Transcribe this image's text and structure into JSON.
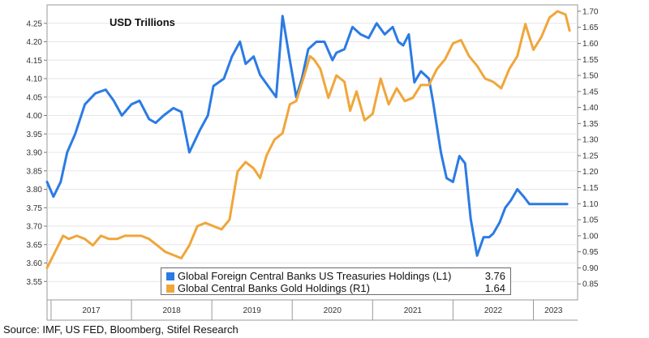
{
  "chart_data": {
    "type": "line",
    "title": "USD Trillions",
    "left_axis": {
      "ylim": [
        3.5,
        4.3
      ],
      "ticks": [
        "3.55",
        "3.60",
        "3.65",
        "3.70",
        "3.75",
        "3.80",
        "3.85",
        "3.90",
        "3.95",
        "4.00",
        "4.05",
        "4.10",
        "4.15",
        "4.20",
        "4.25"
      ]
    },
    "right_axis": {
      "ylim": [
        0.8,
        1.72
      ],
      "ticks": [
        "0.85",
        "0.90",
        "0.95",
        "1.00",
        "1.05",
        "1.10",
        "1.15",
        "1.20",
        "1.25",
        "1.30",
        "1.35",
        "1.40",
        "1.45",
        "1.50",
        "1.55",
        "1.60",
        "1.65",
        "1.70"
      ]
    },
    "x_range": [
      2016.95,
      2023.55
    ],
    "year_boundaries": [
      2017,
      2018,
      2019,
      2020,
      2021,
      2022,
      2023
    ],
    "year_labels": [
      {
        "label": "2017",
        "x": 2017.5
      },
      {
        "label": "2018",
        "x": 2018.5
      },
      {
        "label": "2019",
        "x": 2019.5
      },
      {
        "label": "2020",
        "x": 2020.5
      },
      {
        "label": "2021",
        "x": 2021.5
      },
      {
        "label": "2022",
        "x": 2022.5
      },
      {
        "label": "2023",
        "x": 2023.25
      }
    ],
    "grid": true,
    "legend_position": "bottom-center",
    "series": [
      {
        "name": "Global Foreign Central Banks US Treasuries Holdings (L1)",
        "axis": "left",
        "color": "#2b7be4",
        "last_value": "3.76",
        "x": [
          2016.95,
          2017.03,
          2017.12,
          2017.2,
          2017.3,
          2017.42,
          2017.55,
          2017.68,
          2017.78,
          2017.88,
          2018.0,
          2018.1,
          2018.22,
          2018.3,
          2018.4,
          2018.52,
          2018.62,
          2018.72,
          2018.85,
          2018.95,
          2019.02,
          2019.15,
          2019.25,
          2019.35,
          2019.42,
          2019.52,
          2019.6,
          2019.7,
          2019.8,
          2019.88,
          2019.97,
          2020.05,
          2020.12,
          2020.2,
          2020.3,
          2020.4,
          2020.5,
          2020.55,
          2020.65,
          2020.75,
          2020.85,
          2020.95,
          2021.05,
          2021.15,
          2021.25,
          2021.32,
          2021.38,
          2021.45,
          2021.52,
          2021.6,
          2021.7,
          2021.75,
          2021.85,
          2021.92,
          2022.0,
          2022.08,
          2022.15,
          2022.22,
          2022.3,
          2022.38,
          2022.45,
          2022.5,
          2022.58,
          2022.65,
          2022.72,
          2022.8,
          2022.88,
          2022.95,
          2023.0,
          2023.1,
          2023.2,
          2023.3,
          2023.42
        ],
        "y": [
          3.82,
          3.78,
          3.82,
          3.9,
          3.95,
          4.03,
          4.06,
          4.07,
          4.04,
          4.0,
          4.03,
          4.04,
          3.99,
          3.98,
          4.0,
          4.02,
          4.01,
          3.9,
          3.96,
          4.0,
          4.08,
          4.1,
          4.16,
          4.2,
          4.14,
          4.16,
          4.11,
          4.08,
          4.05,
          4.27,
          4.15,
          4.05,
          4.1,
          4.18,
          4.2,
          4.2,
          4.15,
          4.17,
          4.18,
          4.24,
          4.22,
          4.21,
          4.25,
          4.22,
          4.24,
          4.2,
          4.19,
          4.22,
          4.09,
          4.12,
          4.1,
          4.04,
          3.9,
          3.83,
          3.82,
          3.89,
          3.87,
          3.72,
          3.62,
          3.67,
          3.67,
          3.68,
          3.71,
          3.75,
          3.77,
          3.8,
          3.78,
          3.76,
          3.76,
          3.76,
          3.76,
          3.76,
          3.76
        ]
      },
      {
        "name": "Global Central Banks Gold Holdings (R1)",
        "axis": "right",
        "color": "#f0a63a",
        "last_value": "1.64",
        "x": [
          2016.95,
          2017.05,
          2017.15,
          2017.22,
          2017.32,
          2017.42,
          2017.52,
          2017.62,
          2017.72,
          2017.82,
          2017.92,
          2018.02,
          2018.12,
          2018.22,
          2018.32,
          2018.42,
          2018.52,
          2018.62,
          2018.72,
          2018.82,
          2018.92,
          2019.02,
          2019.12,
          2019.22,
          2019.32,
          2019.42,
          2019.52,
          2019.6,
          2019.68,
          2019.78,
          2019.88,
          2019.97,
          2020.05,
          2020.15,
          2020.22,
          2020.27,
          2020.35,
          2020.45,
          2020.55,
          2020.65,
          2020.72,
          2020.8,
          2020.9,
          2021.0,
          2021.1,
          2021.2,
          2021.3,
          2021.4,
          2021.5,
          2021.6,
          2021.7,
          2021.8,
          2021.9,
          2022.0,
          2022.1,
          2022.2,
          2022.3,
          2022.4,
          2022.5,
          2022.6,
          2022.7,
          2022.8,
          2022.9,
          2023.0,
          2023.1,
          2023.2,
          2023.3,
          2023.4,
          2023.45
        ],
        "y": [
          0.9,
          0.95,
          1.0,
          0.99,
          1.0,
          0.99,
          0.97,
          1.0,
          0.99,
          0.99,
          1.0,
          1.0,
          1.0,
          0.99,
          0.97,
          0.95,
          0.94,
          0.93,
          0.97,
          1.03,
          1.04,
          1.03,
          1.02,
          1.05,
          1.2,
          1.23,
          1.21,
          1.18,
          1.25,
          1.3,
          1.32,
          1.41,
          1.42,
          1.5,
          1.56,
          1.55,
          1.52,
          1.43,
          1.5,
          1.48,
          1.39,
          1.45,
          1.36,
          1.38,
          1.49,
          1.41,
          1.46,
          1.42,
          1.43,
          1.47,
          1.47,
          1.52,
          1.55,
          1.6,
          1.61,
          1.56,
          1.53,
          1.49,
          1.48,
          1.46,
          1.52,
          1.56,
          1.66,
          1.58,
          1.62,
          1.68,
          1.7,
          1.69,
          1.64
        ]
      }
    ]
  },
  "legend": {
    "items": [
      {
        "label": "Global Foreign Central Banks US Treasuries Holdings (L1)",
        "value": "3.76",
        "color": "#2b7be4"
      },
      {
        "label": "Global Central Banks Gold Holdings (R1)",
        "value": "1.64",
        "color": "#f0a63a"
      }
    ]
  },
  "source": "Source: IMF, US FED, Bloomberg, Stifel Research"
}
